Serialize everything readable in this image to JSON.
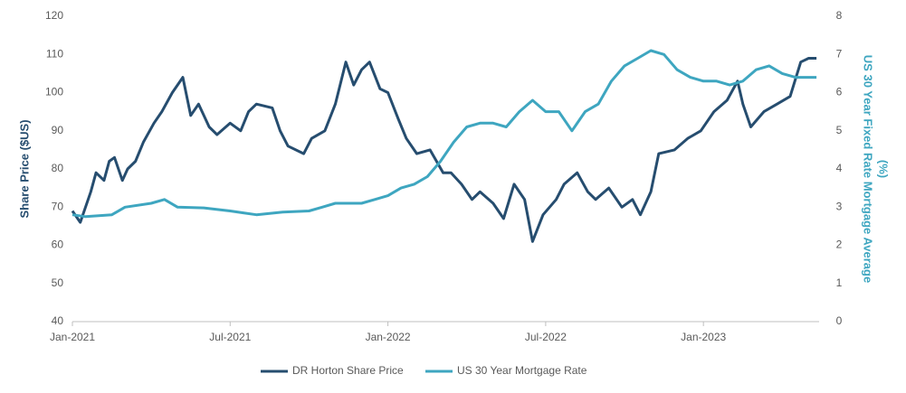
{
  "chart_data": {
    "type": "line",
    "ylabel": "Share Price ($US)",
    "y2label": [
      "US 30 Year Fixed Rate Mortgage Average",
      "(%)"
    ],
    "xlim": [
      0,
      28.4
    ],
    "xticks": [
      {
        "value": 0,
        "label": "Jan-2021"
      },
      {
        "value": 6,
        "label": "Jul-2021"
      },
      {
        "value": 12,
        "label": "Jan-2022"
      },
      {
        "value": 18,
        "label": "Jul-2022"
      },
      {
        "value": 24,
        "label": "Jan-2023"
      }
    ],
    "ylim": [
      40,
      120
    ],
    "yticks": [
      40,
      50,
      60,
      70,
      80,
      90,
      100,
      110,
      120
    ],
    "y2lim": [
      0,
      8
    ],
    "y2ticks": [
      0,
      1,
      2,
      3,
      4,
      5,
      6,
      7,
      8
    ],
    "grid": false,
    "legend": "bottom",
    "series": [
      {
        "name": "DR Horton Share Price",
        "color": "#264d6f",
        "x": [
          0,
          0.3,
          0.7,
          0.9,
          1.2,
          1.4,
          1.6,
          1.9,
          2.1,
          2.4,
          2.7,
          3.1,
          3.4,
          3.8,
          4.2,
          4.5,
          4.8,
          5.2,
          5.5,
          6,
          6.4,
          6.7,
          7.0,
          7.6,
          7.9,
          8.2,
          8.8,
          9.1,
          9.6,
          10,
          10.4,
          10.7,
          11,
          11.3,
          11.7,
          12,
          12.4,
          12.7,
          13.1,
          13.6,
          14.1,
          14.4,
          14.8,
          15.2,
          15.5,
          16,
          16.4,
          16.8,
          17.2,
          17.5,
          17.9,
          18.4,
          18.7,
          19.2,
          19.6,
          19.9,
          20.4,
          20.9,
          21.3,
          21.6,
          22,
          22.3,
          22.9,
          23.4,
          23.9,
          24.4,
          24.9,
          25.3,
          25.5,
          25.8,
          26.3,
          26.8,
          27.3,
          27.7,
          28,
          28.3
        ],
        "values": [
          69,
          66,
          74,
          79,
          77,
          82,
          83,
          77,
          80,
          82,
          87,
          92,
          95,
          100,
          104,
          94,
          97,
          91,
          89,
          92,
          90,
          95,
          97,
          96,
          90,
          86,
          84,
          88,
          90,
          97,
          108,
          102,
          106,
          108,
          101,
          100,
          93,
          88,
          84,
          85,
          79,
          79,
          76,
          72,
          74,
          71,
          67,
          76,
          72,
          61,
          68,
          72,
          76,
          79,
          74,
          72,
          75,
          70,
          72,
          68,
          74,
          84,
          85,
          88,
          90,
          95,
          98,
          103,
          97,
          91,
          95,
          97,
          99,
          108,
          109,
          109
        ]
      },
      {
        "name": "US 30 Year Mortgage Rate",
        "color": "#3ea6c0",
        "axis": "y2",
        "x": [
          0,
          0.5,
          1.5,
          2,
          3,
          3.5,
          4,
          5,
          6,
          6.5,
          7,
          8,
          9,
          9.5,
          10,
          11,
          11.5,
          12,
          12.5,
          13,
          13.5,
          14,
          14.5,
          15,
          15.5,
          16,
          16.5,
          17,
          17.5,
          18,
          18.5,
          19,
          19.5,
          20,
          20.5,
          21,
          21.5,
          22,
          22.5,
          23,
          23.5,
          24,
          24.5,
          25,
          25.5,
          26,
          26.5,
          27,
          27.5,
          28,
          28.3
        ],
        "values": [
          2.8,
          2.75,
          2.8,
          3.0,
          3.1,
          3.2,
          3.0,
          2.98,
          2.9,
          2.85,
          2.8,
          2.87,
          2.9,
          3.0,
          3.1,
          3.1,
          3.2,
          3.3,
          3.5,
          3.6,
          3.8,
          4.2,
          4.7,
          5.1,
          5.2,
          5.2,
          5.1,
          5.5,
          5.8,
          5.5,
          5.5,
          5.0,
          5.5,
          5.7,
          6.3,
          6.7,
          6.9,
          7.1,
          7.0,
          6.6,
          6.4,
          6.3,
          6.3,
          6.2,
          6.3,
          6.6,
          6.7,
          6.5,
          6.4,
          6.4,
          6.4
        ]
      }
    ]
  }
}
